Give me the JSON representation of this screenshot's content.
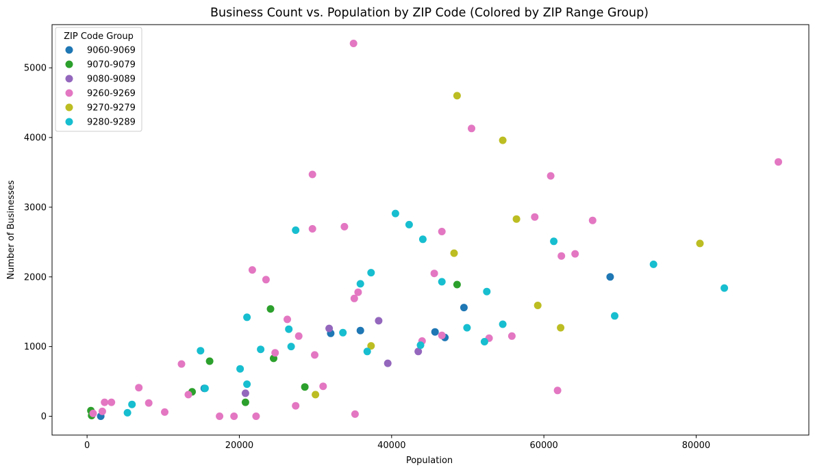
{
  "chart_data": {
    "type": "scatter",
    "title": "Business Count vs. Population by ZIP Code (Colored by ZIP Range Group)",
    "xlabel": "Population",
    "ylabel": "Number of Businesses",
    "xlim": [
      -4600,
      94800
    ],
    "ylim": [
      -270,
      5620
    ],
    "x_ticks": [
      0,
      20000,
      40000,
      60000,
      80000
    ],
    "y_ticks": [
      0,
      1000,
      2000,
      3000,
      4000,
      5000
    ],
    "grid": false,
    "legend": {
      "title": "ZIP Code Group",
      "placement": "top-left"
    },
    "series": [
      {
        "name": "9060-9069",
        "color": "#1f77b4",
        "points": [
          [
            1800,
            0
          ],
          [
            15400,
            400
          ],
          [
            32000,
            1190
          ],
          [
            35900,
            1230
          ],
          [
            45700,
            1210
          ],
          [
            47000,
            1130
          ],
          [
            49500,
            1560
          ],
          [
            68700,
            2000
          ]
        ]
      },
      {
        "name": "9070-9079",
        "color": "#2ca02c",
        "points": [
          [
            500,
            80
          ],
          [
            600,
            10
          ],
          [
            13800,
            350
          ],
          [
            16100,
            790
          ],
          [
            20800,
            200
          ],
          [
            24100,
            1540
          ],
          [
            24500,
            830
          ],
          [
            28600,
            420
          ],
          [
            48600,
            1890
          ]
        ]
      },
      {
        "name": "9080-9089",
        "color": "#9467bd",
        "points": [
          [
            20800,
            330
          ],
          [
            31800,
            1260
          ],
          [
            38300,
            1370
          ],
          [
            39500,
            760
          ],
          [
            43500,
            930
          ]
        ]
      },
      {
        "name": "9260-9269",
        "color": "#e377c2",
        "points": [
          [
            800,
            40
          ],
          [
            2000,
            70
          ],
          [
            2300,
            200
          ],
          [
            3200,
            200
          ],
          [
            6800,
            410
          ],
          [
            8100,
            190
          ],
          [
            10200,
            60
          ],
          [
            12400,
            750
          ],
          [
            13300,
            310
          ],
          [
            17400,
            0
          ],
          [
            19300,
            0
          ],
          [
            21700,
            2100
          ],
          [
            22200,
            0
          ],
          [
            23500,
            1960
          ],
          [
            24700,
            910
          ],
          [
            26300,
            1390
          ],
          [
            27400,
            150
          ],
          [
            27800,
            1150
          ],
          [
            29600,
            3470
          ],
          [
            29600,
            2690
          ],
          [
            29900,
            880
          ],
          [
            31000,
            430
          ],
          [
            33800,
            2720
          ],
          [
            35000,
            5350
          ],
          [
            35100,
            1690
          ],
          [
            35200,
            30
          ],
          [
            35600,
            1780
          ],
          [
            44000,
            1080
          ],
          [
            45600,
            2050
          ],
          [
            46600,
            2650
          ],
          [
            46600,
            1160
          ],
          [
            50500,
            4130
          ],
          [
            52800,
            1120
          ],
          [
            55800,
            1150
          ],
          [
            58800,
            2860
          ],
          [
            60900,
            3450
          ],
          [
            61800,
            370
          ],
          [
            62300,
            2300
          ],
          [
            64100,
            2330
          ],
          [
            66400,
            2810
          ],
          [
            90800,
            3650
          ]
        ]
      },
      {
        "name": "9270-9279",
        "color": "#bcbd22",
        "points": [
          [
            30000,
            310
          ],
          [
            37300,
            1010
          ],
          [
            48200,
            2340
          ],
          [
            48600,
            4600
          ],
          [
            54600,
            3960
          ],
          [
            56400,
            2830
          ],
          [
            59200,
            1590
          ],
          [
            62200,
            1270
          ],
          [
            80500,
            2480
          ]
        ]
      },
      {
        "name": "9280-9289",
        "color": "#17becf",
        "points": [
          [
            5300,
            50
          ],
          [
            5900,
            170
          ],
          [
            14900,
            940
          ],
          [
            15500,
            400
          ],
          [
            20100,
            680
          ],
          [
            21000,
            460
          ],
          [
            21000,
            1420
          ],
          [
            22800,
            960
          ],
          [
            26500,
            1250
          ],
          [
            26800,
            1000
          ],
          [
            27400,
            2670
          ],
          [
            33600,
            1200
          ],
          [
            35900,
            1900
          ],
          [
            36800,
            930
          ],
          [
            37300,
            2060
          ],
          [
            40500,
            2910
          ],
          [
            42300,
            2750
          ],
          [
            43800,
            1020
          ],
          [
            44100,
            2540
          ],
          [
            46600,
            1930
          ],
          [
            49900,
            1270
          ],
          [
            52200,
            1070
          ],
          [
            52500,
            1790
          ],
          [
            54600,
            1320
          ],
          [
            61300,
            2510
          ],
          [
            69300,
            1440
          ],
          [
            74400,
            2180
          ],
          [
            83700,
            1840
          ]
        ]
      }
    ]
  }
}
